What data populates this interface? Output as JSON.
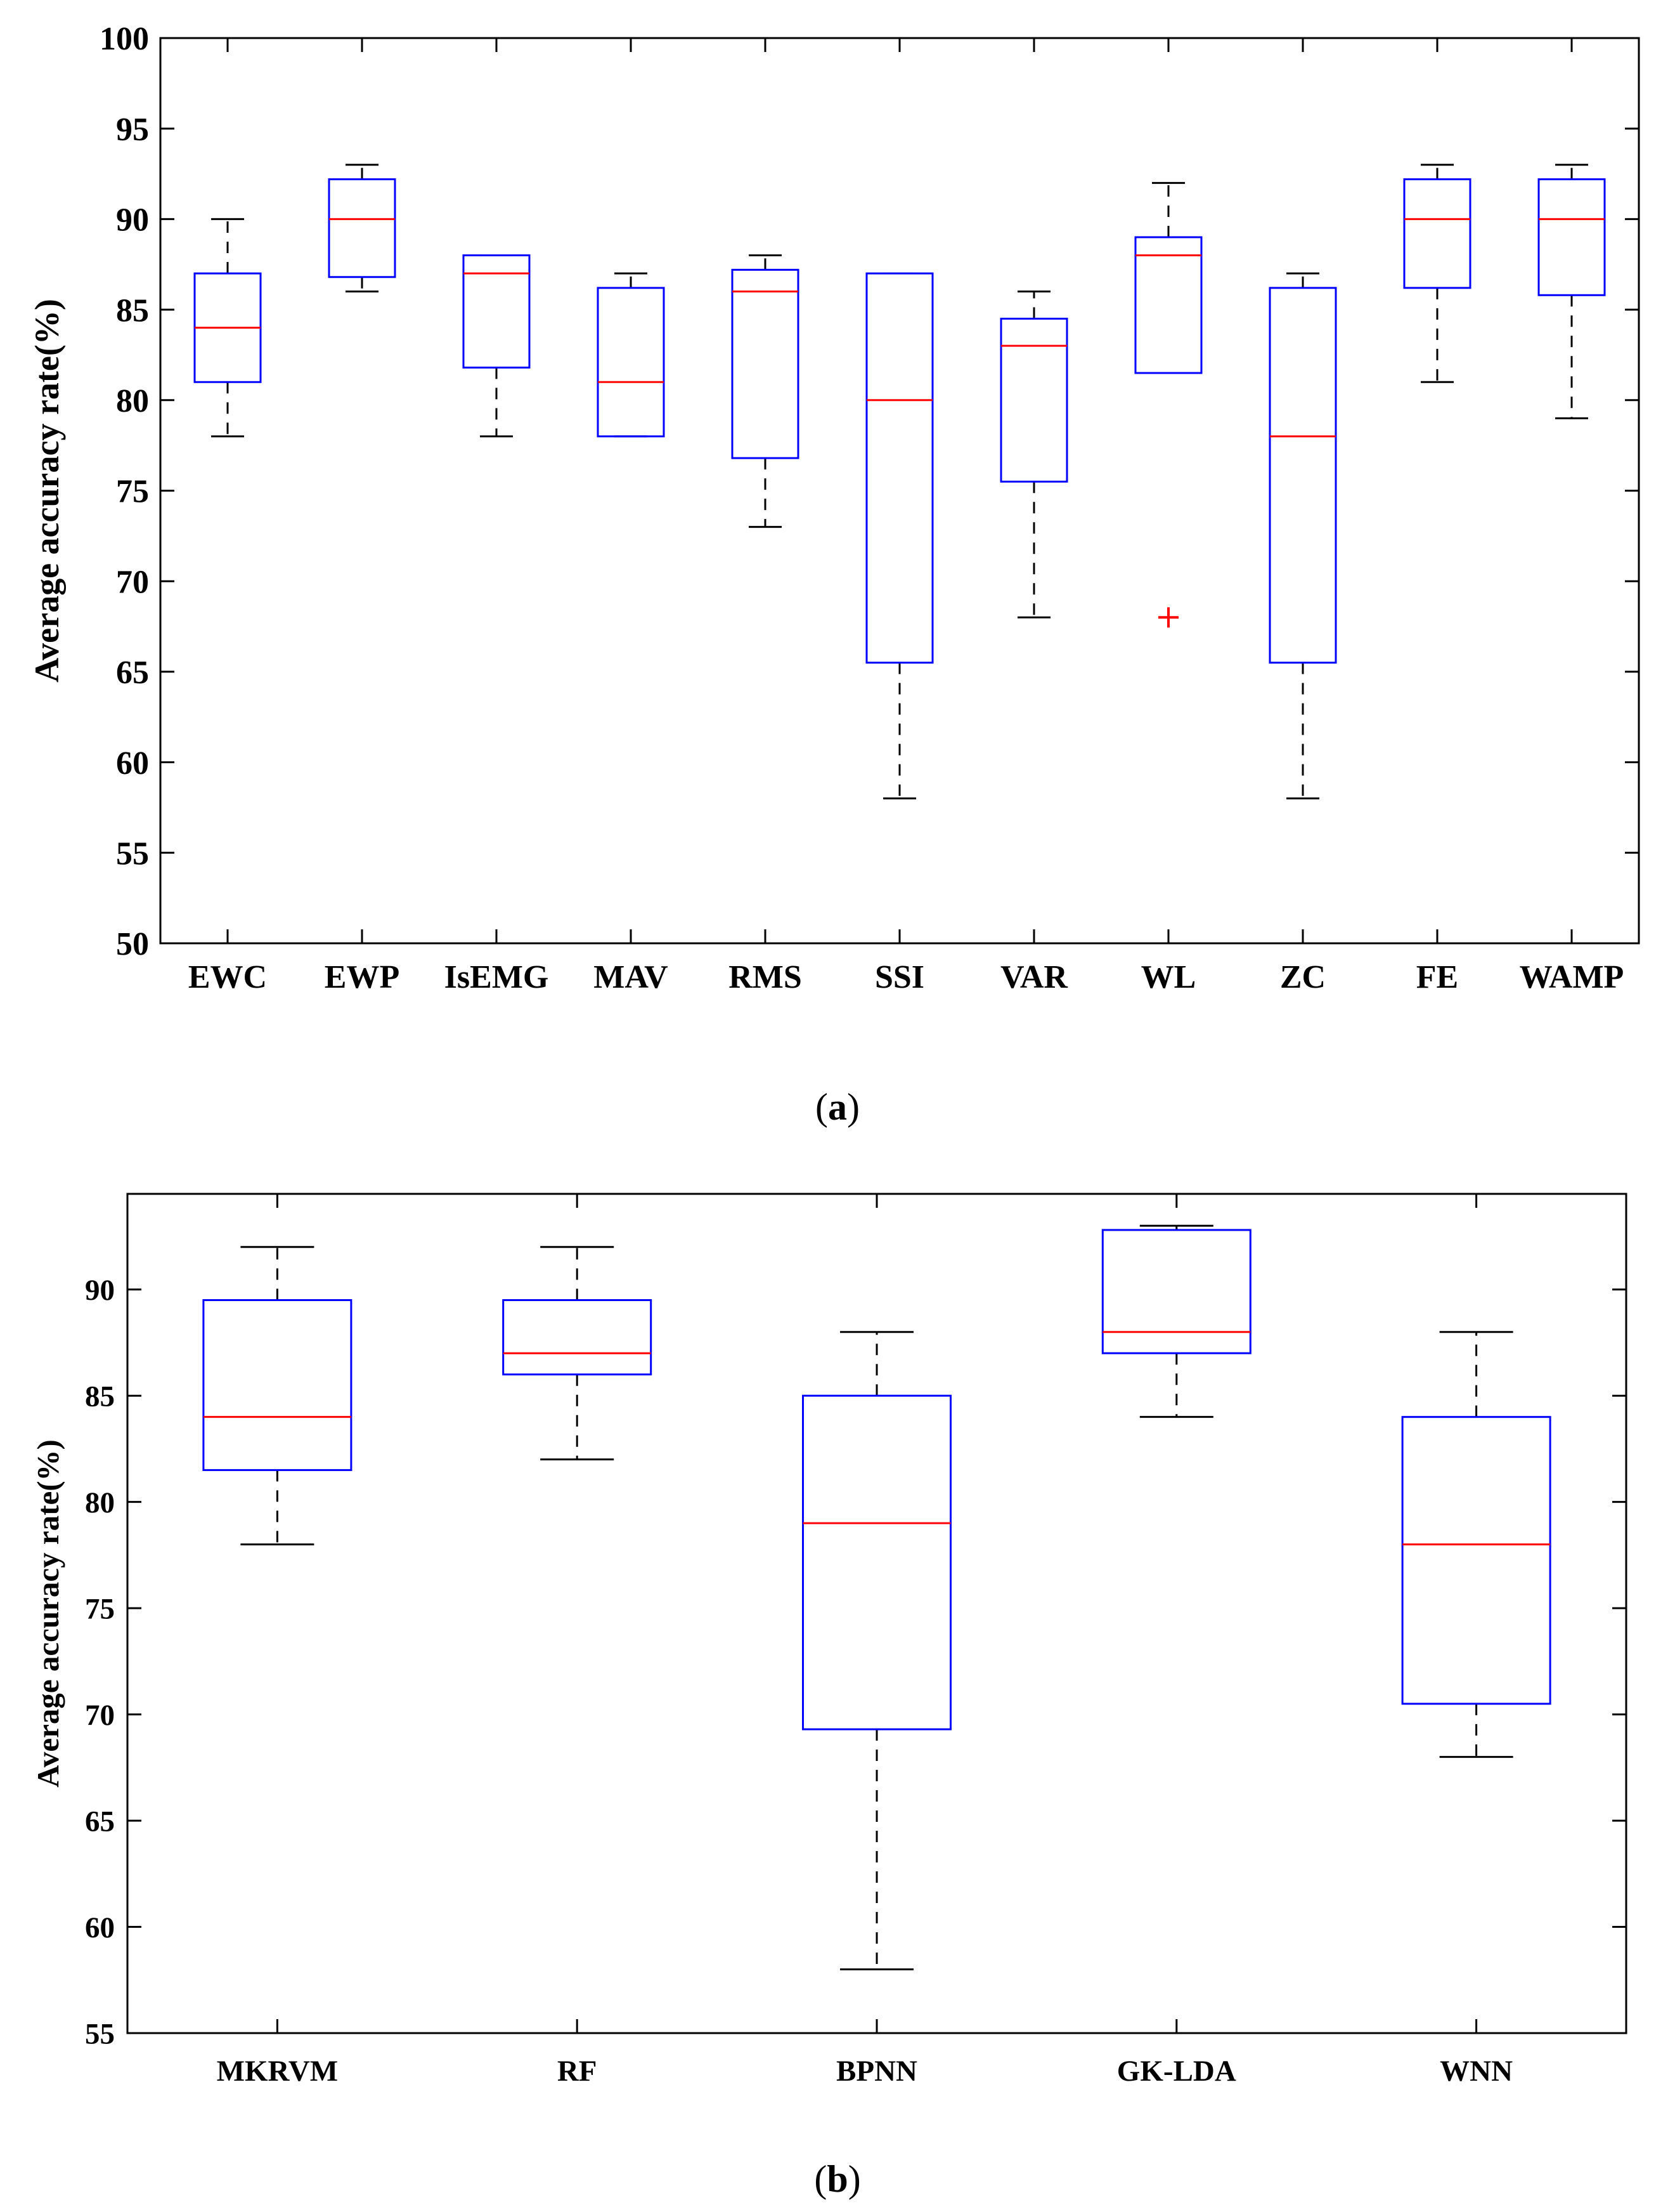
{
  "colors": {
    "box": "#0000ff",
    "median": "#ff0000",
    "whisker": "#000000",
    "outlier": "#ff0000",
    "axis": "#000000",
    "background": "#ffffff"
  },
  "chart_data": [
    {
      "id": "a",
      "type": "boxplot",
      "caption": "(a)",
      "caption_letter": "a",
      "title": "",
      "xlabel": "",
      "ylabel": "Average accuracy rate(%)",
      "ylim": [
        50,
        100
      ],
      "yticks": [
        50,
        55,
        60,
        65,
        70,
        75,
        80,
        85,
        90,
        95,
        100
      ],
      "grid": false,
      "categories": [
        "EWC",
        "EWP",
        "IsEMG",
        "MAV",
        "RMS",
        "SSI",
        "VAR",
        "WL",
        "ZC",
        "FE",
        "WAMP"
      ],
      "boxes": [
        {
          "label": "EWC",
          "whisker_low": 78,
          "q1": 81,
          "median": 84,
          "q3": 87,
          "whisker_high": 90,
          "outliers": []
        },
        {
          "label": "EWP",
          "whisker_low": 86,
          "q1": 86.8,
          "median": 90,
          "q3": 92.2,
          "whisker_high": 93,
          "outliers": []
        },
        {
          "label": "IsEMG",
          "whisker_low": 78,
          "q1": 81.8,
          "median": 87,
          "q3": 88,
          "whisker_high": 88,
          "outliers": []
        },
        {
          "label": "MAV",
          "whisker_low": 78,
          "q1": 78,
          "median": 81,
          "q3": 86.2,
          "whisker_high": 87,
          "outliers": []
        },
        {
          "label": "RMS",
          "whisker_low": 73,
          "q1": 76.8,
          "median": 86,
          "q3": 87.2,
          "whisker_high": 88,
          "outliers": []
        },
        {
          "label": "SSI",
          "whisker_low": 58,
          "q1": 65.5,
          "median": 80,
          "q3": 87,
          "whisker_high": 87,
          "outliers": []
        },
        {
          "label": "VAR",
          "whisker_low": 68,
          "q1": 75.5,
          "median": 83,
          "q3": 84.5,
          "whisker_high": 86,
          "outliers": []
        },
        {
          "label": "WL",
          "whisker_low": 81.5,
          "q1": 81.5,
          "median": 88,
          "q3": 89,
          "whisker_high": 92,
          "outliers": [
            68
          ]
        },
        {
          "label": "ZC",
          "whisker_low": 58,
          "q1": 65.5,
          "median": 78,
          "q3": 86.2,
          "whisker_high": 87,
          "outliers": []
        },
        {
          "label": "FE",
          "whisker_low": 81,
          "q1": 86.2,
          "median": 90,
          "q3": 92.2,
          "whisker_high": 93,
          "outliers": []
        },
        {
          "label": "WAMP",
          "whisker_low": 79,
          "q1": 85.8,
          "median": 90,
          "q3": 92.2,
          "whisker_high": 93,
          "outliers": []
        }
      ]
    },
    {
      "id": "b",
      "type": "boxplot",
      "caption": "(b)",
      "caption_letter": "b",
      "title": "",
      "xlabel": "",
      "ylabel": "Average accuracy rate(%)",
      "ylim": [
        55,
        94.5
      ],
      "yticks": [
        55,
        60,
        65,
        70,
        75,
        80,
        85,
        90
      ],
      "grid": false,
      "categories": [
        "MKRVM",
        "RF",
        "BPNN",
        "GK-LDA",
        "WNN"
      ],
      "boxes": [
        {
          "label": "MKRVM",
          "whisker_low": 78,
          "q1": 81.5,
          "median": 84,
          "q3": 89.5,
          "whisker_high": 92,
          "outliers": []
        },
        {
          "label": "RF",
          "whisker_low": 82,
          "q1": 86,
          "median": 87,
          "q3": 89.5,
          "whisker_high": 92,
          "outliers": []
        },
        {
          "label": "BPNN",
          "whisker_low": 58,
          "q1": 69.3,
          "median": 79,
          "q3": 85,
          "whisker_high": 88,
          "outliers": []
        },
        {
          "label": "GK-LDA",
          "whisker_low": 84,
          "q1": 87,
          "median": 88,
          "q3": 92.8,
          "whisker_high": 93,
          "outliers": []
        },
        {
          "label": "WNN",
          "whisker_low": 68,
          "q1": 70.5,
          "median": 78,
          "q3": 84,
          "whisker_high": 88,
          "outliers": []
        }
      ]
    }
  ]
}
